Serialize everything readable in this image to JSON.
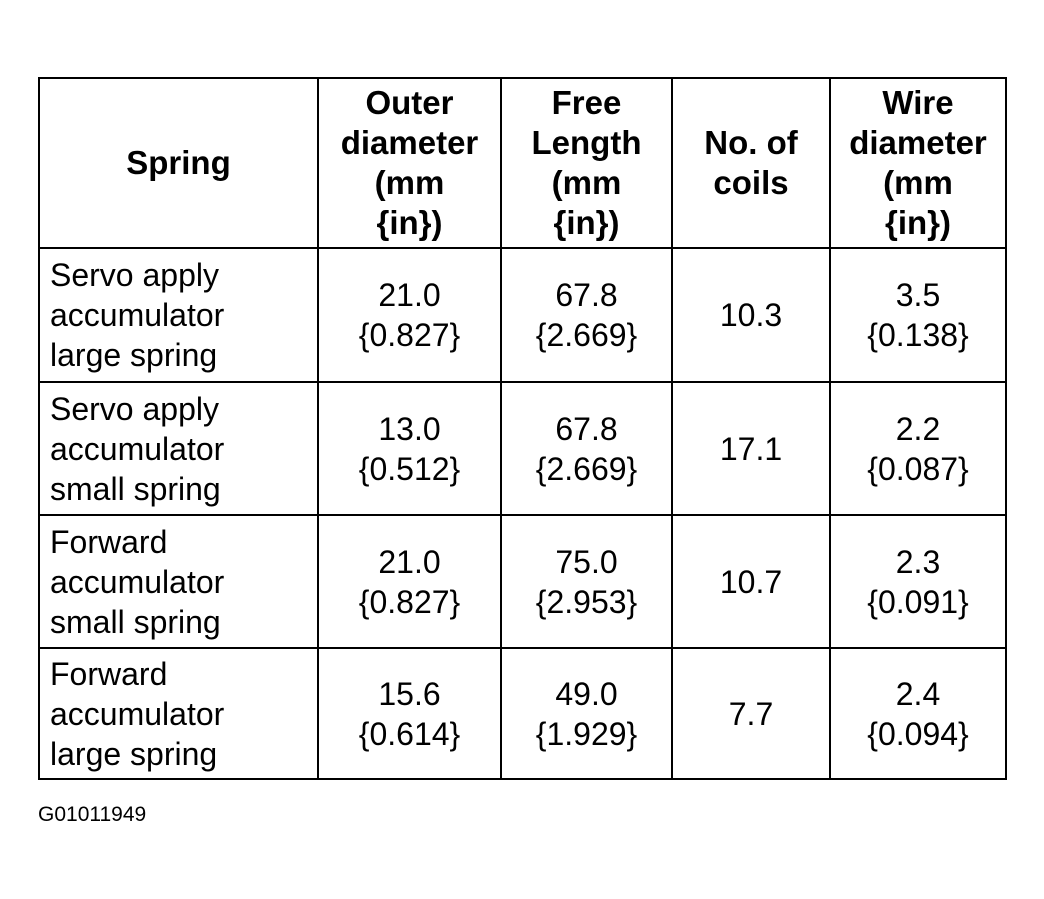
{
  "table": {
    "header": [
      [
        "Spring"
      ],
      [
        "Outer",
        "diameter",
        "(mm",
        "{in})"
      ],
      [
        "Free",
        "Length",
        "(mm",
        "{in})"
      ],
      [
        "No. of",
        "coils"
      ],
      [
        "Wire",
        "diameter",
        "(mm",
        "{in})"
      ]
    ],
    "rows": [
      [
        [
          "Servo apply",
          "accumulator",
          "large spring"
        ],
        [
          "21.0",
          "{0.827}"
        ],
        [
          "67.8",
          "{2.669}"
        ],
        [
          "10.3"
        ],
        [
          "3.5",
          "{0.138}"
        ]
      ],
      [
        [
          "Servo apply",
          "accumulator",
          "small spring"
        ],
        [
          "13.0",
          "{0.512}"
        ],
        [
          "67.8",
          "{2.669}"
        ],
        [
          "17.1"
        ],
        [
          "2.2",
          "{0.087}"
        ]
      ],
      [
        [
          "Forward",
          "accumulator",
          "small spring"
        ],
        [
          "21.0",
          "{0.827}"
        ],
        [
          "75.0",
          "{2.953}"
        ],
        [
          "10.7"
        ],
        [
          "2.3",
          "{0.091}"
        ]
      ],
      [
        [
          "Forward",
          "accumulator",
          "large spring"
        ],
        [
          "15.6",
          "{0.614}"
        ],
        [
          "49.0",
          "{1.929}"
        ],
        [
          "7.7"
        ],
        [
          "2.4",
          "{0.094}"
        ]
      ]
    ]
  },
  "figure_id": "G01011949"
}
